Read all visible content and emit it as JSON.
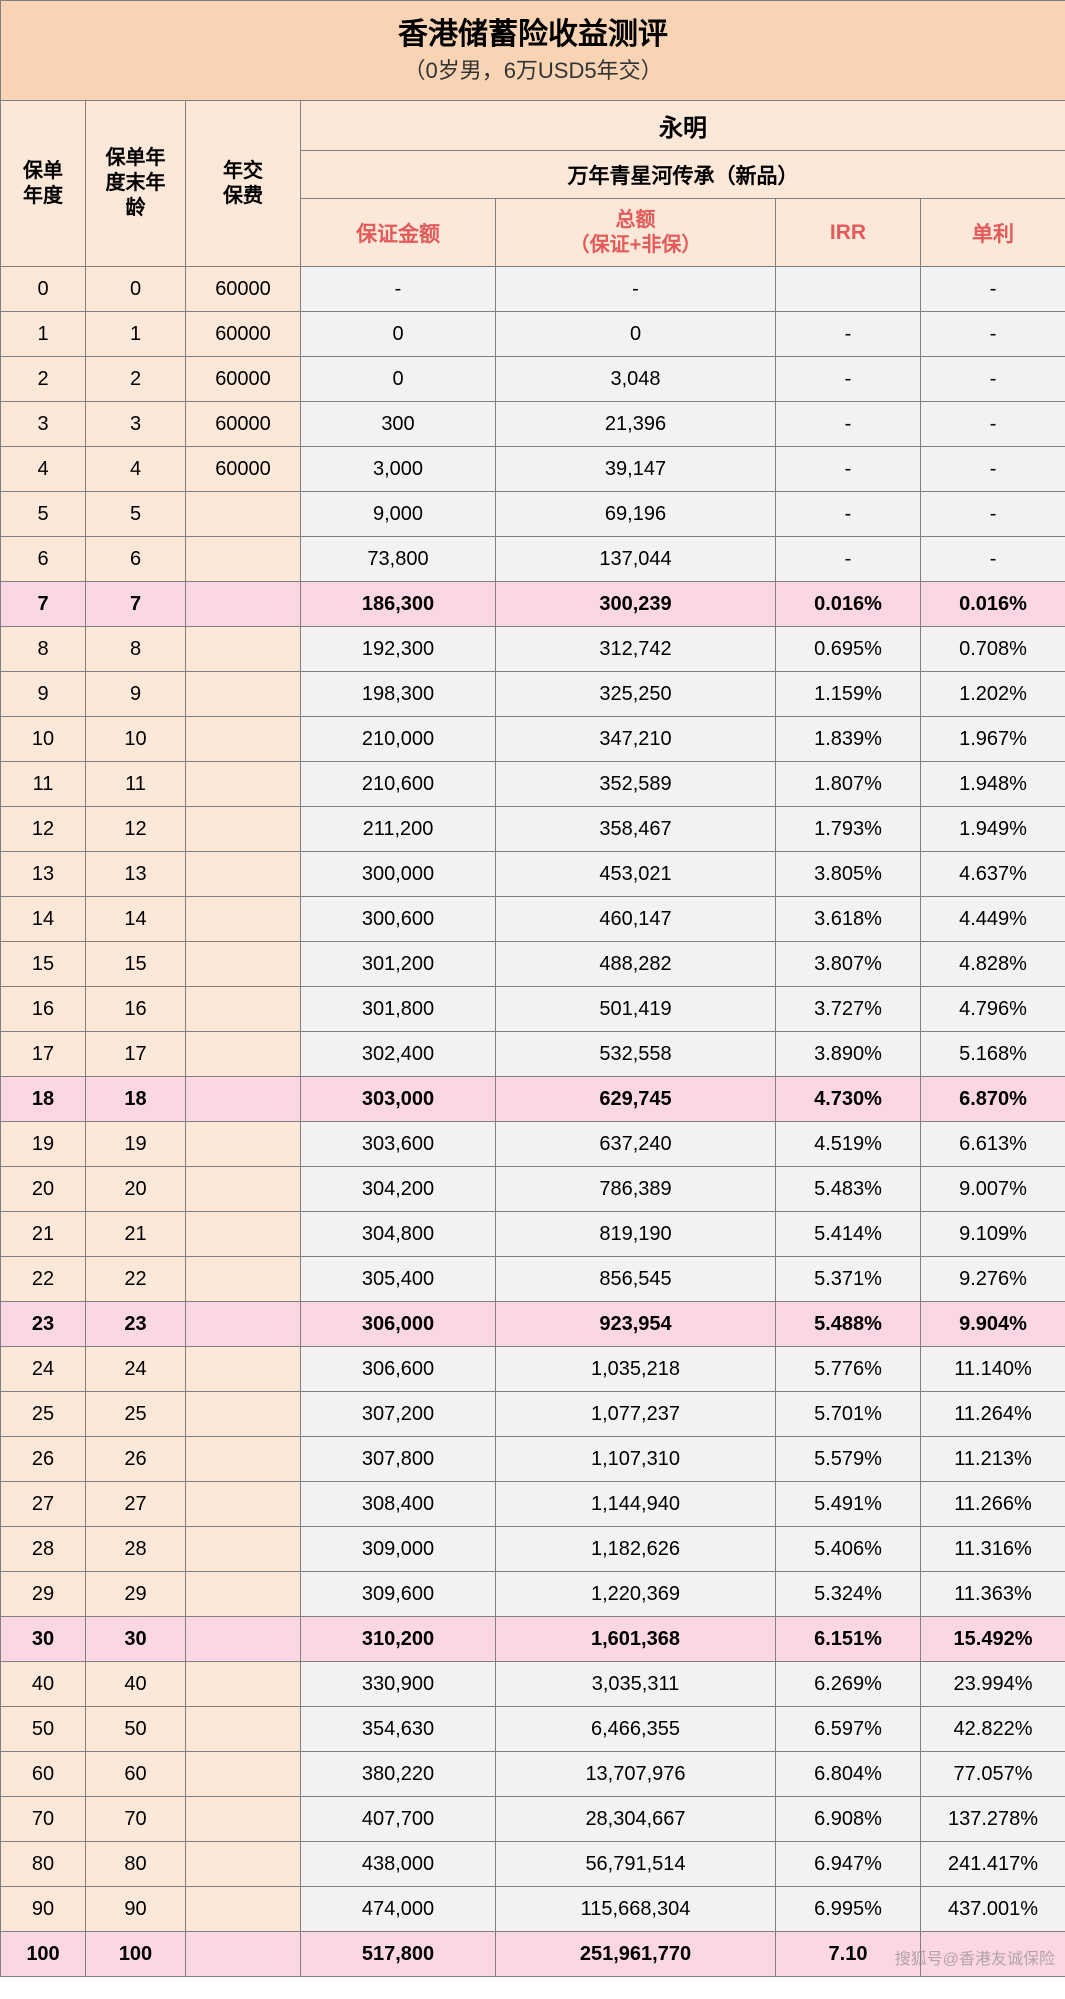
{
  "title": {
    "main": "香港储蓄险收益测评",
    "sub": "（0岁男，6万USD5年交）"
  },
  "headers": {
    "year": "保单\n年度",
    "age": "保单年\n度末年\n龄",
    "fee": "年交\n保费",
    "company": "永明",
    "product": "万年青星河传承（新品）",
    "guaranteed": "保证金额",
    "total_l1": "总额",
    "total_l2": "（保证+非保）",
    "irr": "IRR",
    "simple": "单利"
  },
  "colors": {
    "peach": "#f8d4b4",
    "lightpeach": "#fce8d8",
    "gray": "#f2f2f2",
    "pink": "#fbd7e3",
    "border": "#808080",
    "redText": "#e35a5a"
  },
  "rows": [
    {
      "year": "0",
      "age": "0",
      "fee": "60000",
      "guar": "-",
      "total": "-",
      "irr": "",
      "simple": "-",
      "hl": false
    },
    {
      "year": "1",
      "age": "1",
      "fee": "60000",
      "guar": "0",
      "total": "0",
      "irr": "-",
      "simple": "-",
      "hl": false
    },
    {
      "year": "2",
      "age": "2",
      "fee": "60000",
      "guar": "0",
      "total": "3,048",
      "irr": "-",
      "simple": "-",
      "hl": false
    },
    {
      "year": "3",
      "age": "3",
      "fee": "60000",
      "guar": "300",
      "total": "21,396",
      "irr": "-",
      "simple": "-",
      "hl": false
    },
    {
      "year": "4",
      "age": "4",
      "fee": "60000",
      "guar": "3,000",
      "total": "39,147",
      "irr": "-",
      "simple": "-",
      "hl": false
    },
    {
      "year": "5",
      "age": "5",
      "fee": "",
      "guar": "9,000",
      "total": "69,196",
      "irr": "-",
      "simple": "-",
      "hl": false
    },
    {
      "year": "6",
      "age": "6",
      "fee": "",
      "guar": "73,800",
      "total": "137,044",
      "irr": "-",
      "simple": "-",
      "hl": false
    },
    {
      "year": "7",
      "age": "7",
      "fee": "",
      "guar": "186,300",
      "total": "300,239",
      "irr": "0.016%",
      "simple": "0.016%",
      "hl": true
    },
    {
      "year": "8",
      "age": "8",
      "fee": "",
      "guar": "192,300",
      "total": "312,742",
      "irr": "0.695%",
      "simple": "0.708%",
      "hl": false
    },
    {
      "year": "9",
      "age": "9",
      "fee": "",
      "guar": "198,300",
      "total": "325,250",
      "irr": "1.159%",
      "simple": "1.202%",
      "hl": false
    },
    {
      "year": "10",
      "age": "10",
      "fee": "",
      "guar": "210,000",
      "total": "347,210",
      "irr": "1.839%",
      "simple": "1.967%",
      "hl": false
    },
    {
      "year": "11",
      "age": "11",
      "fee": "",
      "guar": "210,600",
      "total": "352,589",
      "irr": "1.807%",
      "simple": "1.948%",
      "hl": false
    },
    {
      "year": "12",
      "age": "12",
      "fee": "",
      "guar": "211,200",
      "total": "358,467",
      "irr": "1.793%",
      "simple": "1.949%",
      "hl": false
    },
    {
      "year": "13",
      "age": "13",
      "fee": "",
      "guar": "300,000",
      "total": "453,021",
      "irr": "3.805%",
      "simple": "4.637%",
      "hl": false
    },
    {
      "year": "14",
      "age": "14",
      "fee": "",
      "guar": "300,600",
      "total": "460,147",
      "irr": "3.618%",
      "simple": "4.449%",
      "hl": false
    },
    {
      "year": "15",
      "age": "15",
      "fee": "",
      "guar": "301,200",
      "total": "488,282",
      "irr": "3.807%",
      "simple": "4.828%",
      "hl": false
    },
    {
      "year": "16",
      "age": "16",
      "fee": "",
      "guar": "301,800",
      "total": "501,419",
      "irr": "3.727%",
      "simple": "4.796%",
      "hl": false
    },
    {
      "year": "17",
      "age": "17",
      "fee": "",
      "guar": "302,400",
      "total": "532,558",
      "irr": "3.890%",
      "simple": "5.168%",
      "hl": false
    },
    {
      "year": "18",
      "age": "18",
      "fee": "",
      "guar": "303,000",
      "total": "629,745",
      "irr": "4.730%",
      "simple": "6.870%",
      "hl": true
    },
    {
      "year": "19",
      "age": "19",
      "fee": "",
      "guar": "303,600",
      "total": "637,240",
      "irr": "4.519%",
      "simple": "6.613%",
      "hl": false
    },
    {
      "year": "20",
      "age": "20",
      "fee": "",
      "guar": "304,200",
      "total": "786,389",
      "irr": "5.483%",
      "simple": "9.007%",
      "hl": false
    },
    {
      "year": "21",
      "age": "21",
      "fee": "",
      "guar": "304,800",
      "total": "819,190",
      "irr": "5.414%",
      "simple": "9.109%",
      "hl": false
    },
    {
      "year": "22",
      "age": "22",
      "fee": "",
      "guar": "305,400",
      "total": "856,545",
      "irr": "5.371%",
      "simple": "9.276%",
      "hl": false
    },
    {
      "year": "23",
      "age": "23",
      "fee": "",
      "guar": "306,000",
      "total": "923,954",
      "irr": "5.488%",
      "simple": "9.904%",
      "hl": true
    },
    {
      "year": "24",
      "age": "24",
      "fee": "",
      "guar": "306,600",
      "total": "1,035,218",
      "irr": "5.776%",
      "simple": "11.140%",
      "hl": false
    },
    {
      "year": "25",
      "age": "25",
      "fee": "",
      "guar": "307,200",
      "total": "1,077,237",
      "irr": "5.701%",
      "simple": "11.264%",
      "hl": false
    },
    {
      "year": "26",
      "age": "26",
      "fee": "",
      "guar": "307,800",
      "total": "1,107,310",
      "irr": "5.579%",
      "simple": "11.213%",
      "hl": false
    },
    {
      "year": "27",
      "age": "27",
      "fee": "",
      "guar": "308,400",
      "total": "1,144,940",
      "irr": "5.491%",
      "simple": "11.266%",
      "hl": false
    },
    {
      "year": "28",
      "age": "28",
      "fee": "",
      "guar": "309,000",
      "total": "1,182,626",
      "irr": "5.406%",
      "simple": "11.316%",
      "hl": false
    },
    {
      "year": "29",
      "age": "29",
      "fee": "",
      "guar": "309,600",
      "total": "1,220,369",
      "irr": "5.324%",
      "simple": "11.363%",
      "hl": false
    },
    {
      "year": "30",
      "age": "30",
      "fee": "",
      "guar": "310,200",
      "total": "1,601,368",
      "irr": "6.151%",
      "simple": "15.492%",
      "hl": true
    },
    {
      "year": "40",
      "age": "40",
      "fee": "",
      "guar": "330,900",
      "total": "3,035,311",
      "irr": "6.269%",
      "simple": "23.994%",
      "hl": false
    },
    {
      "year": "50",
      "age": "50",
      "fee": "",
      "guar": "354,630",
      "total": "6,466,355",
      "irr": "6.597%",
      "simple": "42.822%",
      "hl": false
    },
    {
      "year": "60",
      "age": "60",
      "fee": "",
      "guar": "380,220",
      "total": "13,707,976",
      "irr": "6.804%",
      "simple": "77.057%",
      "hl": false
    },
    {
      "year": "70",
      "age": "70",
      "fee": "",
      "guar": "407,700",
      "total": "28,304,667",
      "irr": "6.908%",
      "simple": "137.278%",
      "hl": false
    },
    {
      "year": "80",
      "age": "80",
      "fee": "",
      "guar": "438,000",
      "total": "56,791,514",
      "irr": "6.947%",
      "simple": "241.417%",
      "hl": false
    },
    {
      "year": "90",
      "age": "90",
      "fee": "",
      "guar": "474,000",
      "total": "115,668,304",
      "irr": "6.995%",
      "simple": "437.001%",
      "hl": false
    },
    {
      "year": "100",
      "age": "100",
      "fee": "",
      "guar": "517,800",
      "total": "251,961,770",
      "irr": "7.10",
      "simple": "",
      "hl": true
    }
  ],
  "watermark": "搜狐号@香港友诚保险"
}
